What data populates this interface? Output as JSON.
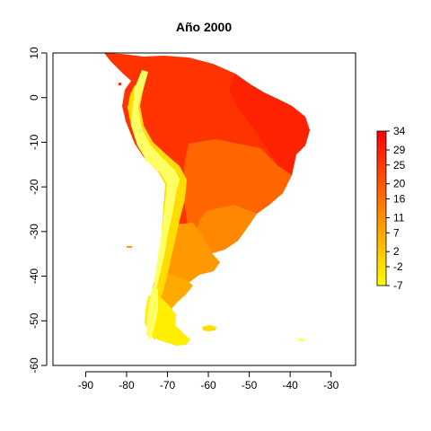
{
  "title": "Año 2000",
  "map": {
    "x_axis": {
      "ticks": [
        -90,
        -80,
        -70,
        -60,
        -50,
        -40,
        -30
      ],
      "labels": [
        "-90",
        "-80",
        "-70",
        "-60",
        "-50",
        "-40",
        "-30"
      ],
      "range": [
        -98,
        -24
      ]
    },
    "y_axis": {
      "ticks": [
        10,
        0,
        -10,
        -20,
        -30,
        -40,
        -50,
        -60
      ],
      "labels": [
        "10",
        "0",
        "-10",
        "-20",
        "-30",
        "-40",
        "-50",
        "-60"
      ],
      "range": [
        -60,
        10
      ]
    }
  },
  "colorbar": {
    "ticks": [
      34,
      29,
      25,
      20,
      16,
      11,
      7,
      2,
      -2,
      -7
    ],
    "labels": [
      "34",
      "29",
      "25",
      "20",
      "16",
      "11",
      "7",
      "2",
      "-2",
      "-7"
    ],
    "range": [
      -7,
      34
    ],
    "colors": [
      "#ffff00",
      "#ffcc00",
      "#ff9900",
      "#ff6600",
      "#ff3300",
      "#ff0000"
    ]
  },
  "zone_colors": {
    "andes_high": "#ffff66",
    "andes_mid": "#ffdd00",
    "patagonia_south": "#ffee00",
    "patagonia": "#ffaa00",
    "pampas": "#ff9900",
    "south_brazil": "#ff8800",
    "central": "#ff6600",
    "amazon": "#ff3300",
    "northeast": "#ff2200"
  }
}
